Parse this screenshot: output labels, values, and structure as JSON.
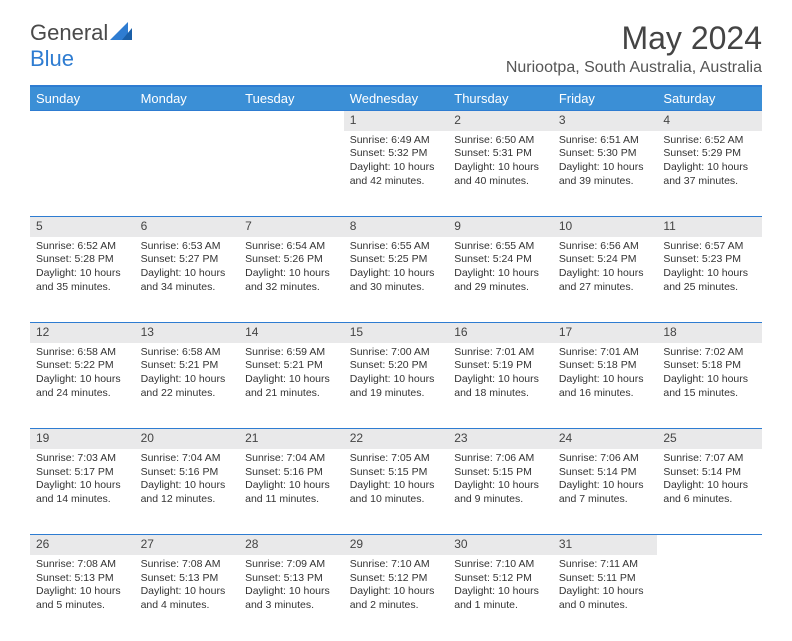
{
  "brand": {
    "part1": "General",
    "part2": "Blue"
  },
  "title": "May 2024",
  "location": "Nuriootpa, South Australia, Australia",
  "colors": {
    "header_bg": "#3b8fd6",
    "accent": "#2e7cd1",
    "daynum_bg": "#e9e9ea",
    "text": "#333333"
  },
  "weekdays": [
    "Sunday",
    "Monday",
    "Tuesday",
    "Wednesday",
    "Thursday",
    "Friday",
    "Saturday"
  ],
  "weeks": [
    [
      null,
      null,
      null,
      {
        "n": "1",
        "sr": "Sunrise: 6:49 AM",
        "ss": "Sunset: 5:32 PM",
        "d1": "Daylight: 10 hours",
        "d2": "and 42 minutes."
      },
      {
        "n": "2",
        "sr": "Sunrise: 6:50 AM",
        "ss": "Sunset: 5:31 PM",
        "d1": "Daylight: 10 hours",
        "d2": "and 40 minutes."
      },
      {
        "n": "3",
        "sr": "Sunrise: 6:51 AM",
        "ss": "Sunset: 5:30 PM",
        "d1": "Daylight: 10 hours",
        "d2": "and 39 minutes."
      },
      {
        "n": "4",
        "sr": "Sunrise: 6:52 AM",
        "ss": "Sunset: 5:29 PM",
        "d1": "Daylight: 10 hours",
        "d2": "and 37 minutes."
      }
    ],
    [
      {
        "n": "5",
        "sr": "Sunrise: 6:52 AM",
        "ss": "Sunset: 5:28 PM",
        "d1": "Daylight: 10 hours",
        "d2": "and 35 minutes."
      },
      {
        "n": "6",
        "sr": "Sunrise: 6:53 AM",
        "ss": "Sunset: 5:27 PM",
        "d1": "Daylight: 10 hours",
        "d2": "and 34 minutes."
      },
      {
        "n": "7",
        "sr": "Sunrise: 6:54 AM",
        "ss": "Sunset: 5:26 PM",
        "d1": "Daylight: 10 hours",
        "d2": "and 32 minutes."
      },
      {
        "n": "8",
        "sr": "Sunrise: 6:55 AM",
        "ss": "Sunset: 5:25 PM",
        "d1": "Daylight: 10 hours",
        "d2": "and 30 minutes."
      },
      {
        "n": "9",
        "sr": "Sunrise: 6:55 AM",
        "ss": "Sunset: 5:24 PM",
        "d1": "Daylight: 10 hours",
        "d2": "and 29 minutes."
      },
      {
        "n": "10",
        "sr": "Sunrise: 6:56 AM",
        "ss": "Sunset: 5:24 PM",
        "d1": "Daylight: 10 hours",
        "d2": "and 27 minutes."
      },
      {
        "n": "11",
        "sr": "Sunrise: 6:57 AM",
        "ss": "Sunset: 5:23 PM",
        "d1": "Daylight: 10 hours",
        "d2": "and 25 minutes."
      }
    ],
    [
      {
        "n": "12",
        "sr": "Sunrise: 6:58 AM",
        "ss": "Sunset: 5:22 PM",
        "d1": "Daylight: 10 hours",
        "d2": "and 24 minutes."
      },
      {
        "n": "13",
        "sr": "Sunrise: 6:58 AM",
        "ss": "Sunset: 5:21 PM",
        "d1": "Daylight: 10 hours",
        "d2": "and 22 minutes."
      },
      {
        "n": "14",
        "sr": "Sunrise: 6:59 AM",
        "ss": "Sunset: 5:21 PM",
        "d1": "Daylight: 10 hours",
        "d2": "and 21 minutes."
      },
      {
        "n": "15",
        "sr": "Sunrise: 7:00 AM",
        "ss": "Sunset: 5:20 PM",
        "d1": "Daylight: 10 hours",
        "d2": "and 19 minutes."
      },
      {
        "n": "16",
        "sr": "Sunrise: 7:01 AM",
        "ss": "Sunset: 5:19 PM",
        "d1": "Daylight: 10 hours",
        "d2": "and 18 minutes."
      },
      {
        "n": "17",
        "sr": "Sunrise: 7:01 AM",
        "ss": "Sunset: 5:18 PM",
        "d1": "Daylight: 10 hours",
        "d2": "and 16 minutes."
      },
      {
        "n": "18",
        "sr": "Sunrise: 7:02 AM",
        "ss": "Sunset: 5:18 PM",
        "d1": "Daylight: 10 hours",
        "d2": "and 15 minutes."
      }
    ],
    [
      {
        "n": "19",
        "sr": "Sunrise: 7:03 AM",
        "ss": "Sunset: 5:17 PM",
        "d1": "Daylight: 10 hours",
        "d2": "and 14 minutes."
      },
      {
        "n": "20",
        "sr": "Sunrise: 7:04 AM",
        "ss": "Sunset: 5:16 PM",
        "d1": "Daylight: 10 hours",
        "d2": "and 12 minutes."
      },
      {
        "n": "21",
        "sr": "Sunrise: 7:04 AM",
        "ss": "Sunset: 5:16 PM",
        "d1": "Daylight: 10 hours",
        "d2": "and 11 minutes."
      },
      {
        "n": "22",
        "sr": "Sunrise: 7:05 AM",
        "ss": "Sunset: 5:15 PM",
        "d1": "Daylight: 10 hours",
        "d2": "and 10 minutes."
      },
      {
        "n": "23",
        "sr": "Sunrise: 7:06 AM",
        "ss": "Sunset: 5:15 PM",
        "d1": "Daylight: 10 hours",
        "d2": "and 9 minutes."
      },
      {
        "n": "24",
        "sr": "Sunrise: 7:06 AM",
        "ss": "Sunset: 5:14 PM",
        "d1": "Daylight: 10 hours",
        "d2": "and 7 minutes."
      },
      {
        "n": "25",
        "sr": "Sunrise: 7:07 AM",
        "ss": "Sunset: 5:14 PM",
        "d1": "Daylight: 10 hours",
        "d2": "and 6 minutes."
      }
    ],
    [
      {
        "n": "26",
        "sr": "Sunrise: 7:08 AM",
        "ss": "Sunset: 5:13 PM",
        "d1": "Daylight: 10 hours",
        "d2": "and 5 minutes."
      },
      {
        "n": "27",
        "sr": "Sunrise: 7:08 AM",
        "ss": "Sunset: 5:13 PM",
        "d1": "Daylight: 10 hours",
        "d2": "and 4 minutes."
      },
      {
        "n": "28",
        "sr": "Sunrise: 7:09 AM",
        "ss": "Sunset: 5:13 PM",
        "d1": "Daylight: 10 hours",
        "d2": "and 3 minutes."
      },
      {
        "n": "29",
        "sr": "Sunrise: 7:10 AM",
        "ss": "Sunset: 5:12 PM",
        "d1": "Daylight: 10 hours",
        "d2": "and 2 minutes."
      },
      {
        "n": "30",
        "sr": "Sunrise: 7:10 AM",
        "ss": "Sunset: 5:12 PM",
        "d1": "Daylight: 10 hours",
        "d2": "and 1 minute."
      },
      {
        "n": "31",
        "sr": "Sunrise: 7:11 AM",
        "ss": "Sunset: 5:11 PM",
        "d1": "Daylight: 10 hours",
        "d2": "and 0 minutes."
      },
      null
    ]
  ]
}
